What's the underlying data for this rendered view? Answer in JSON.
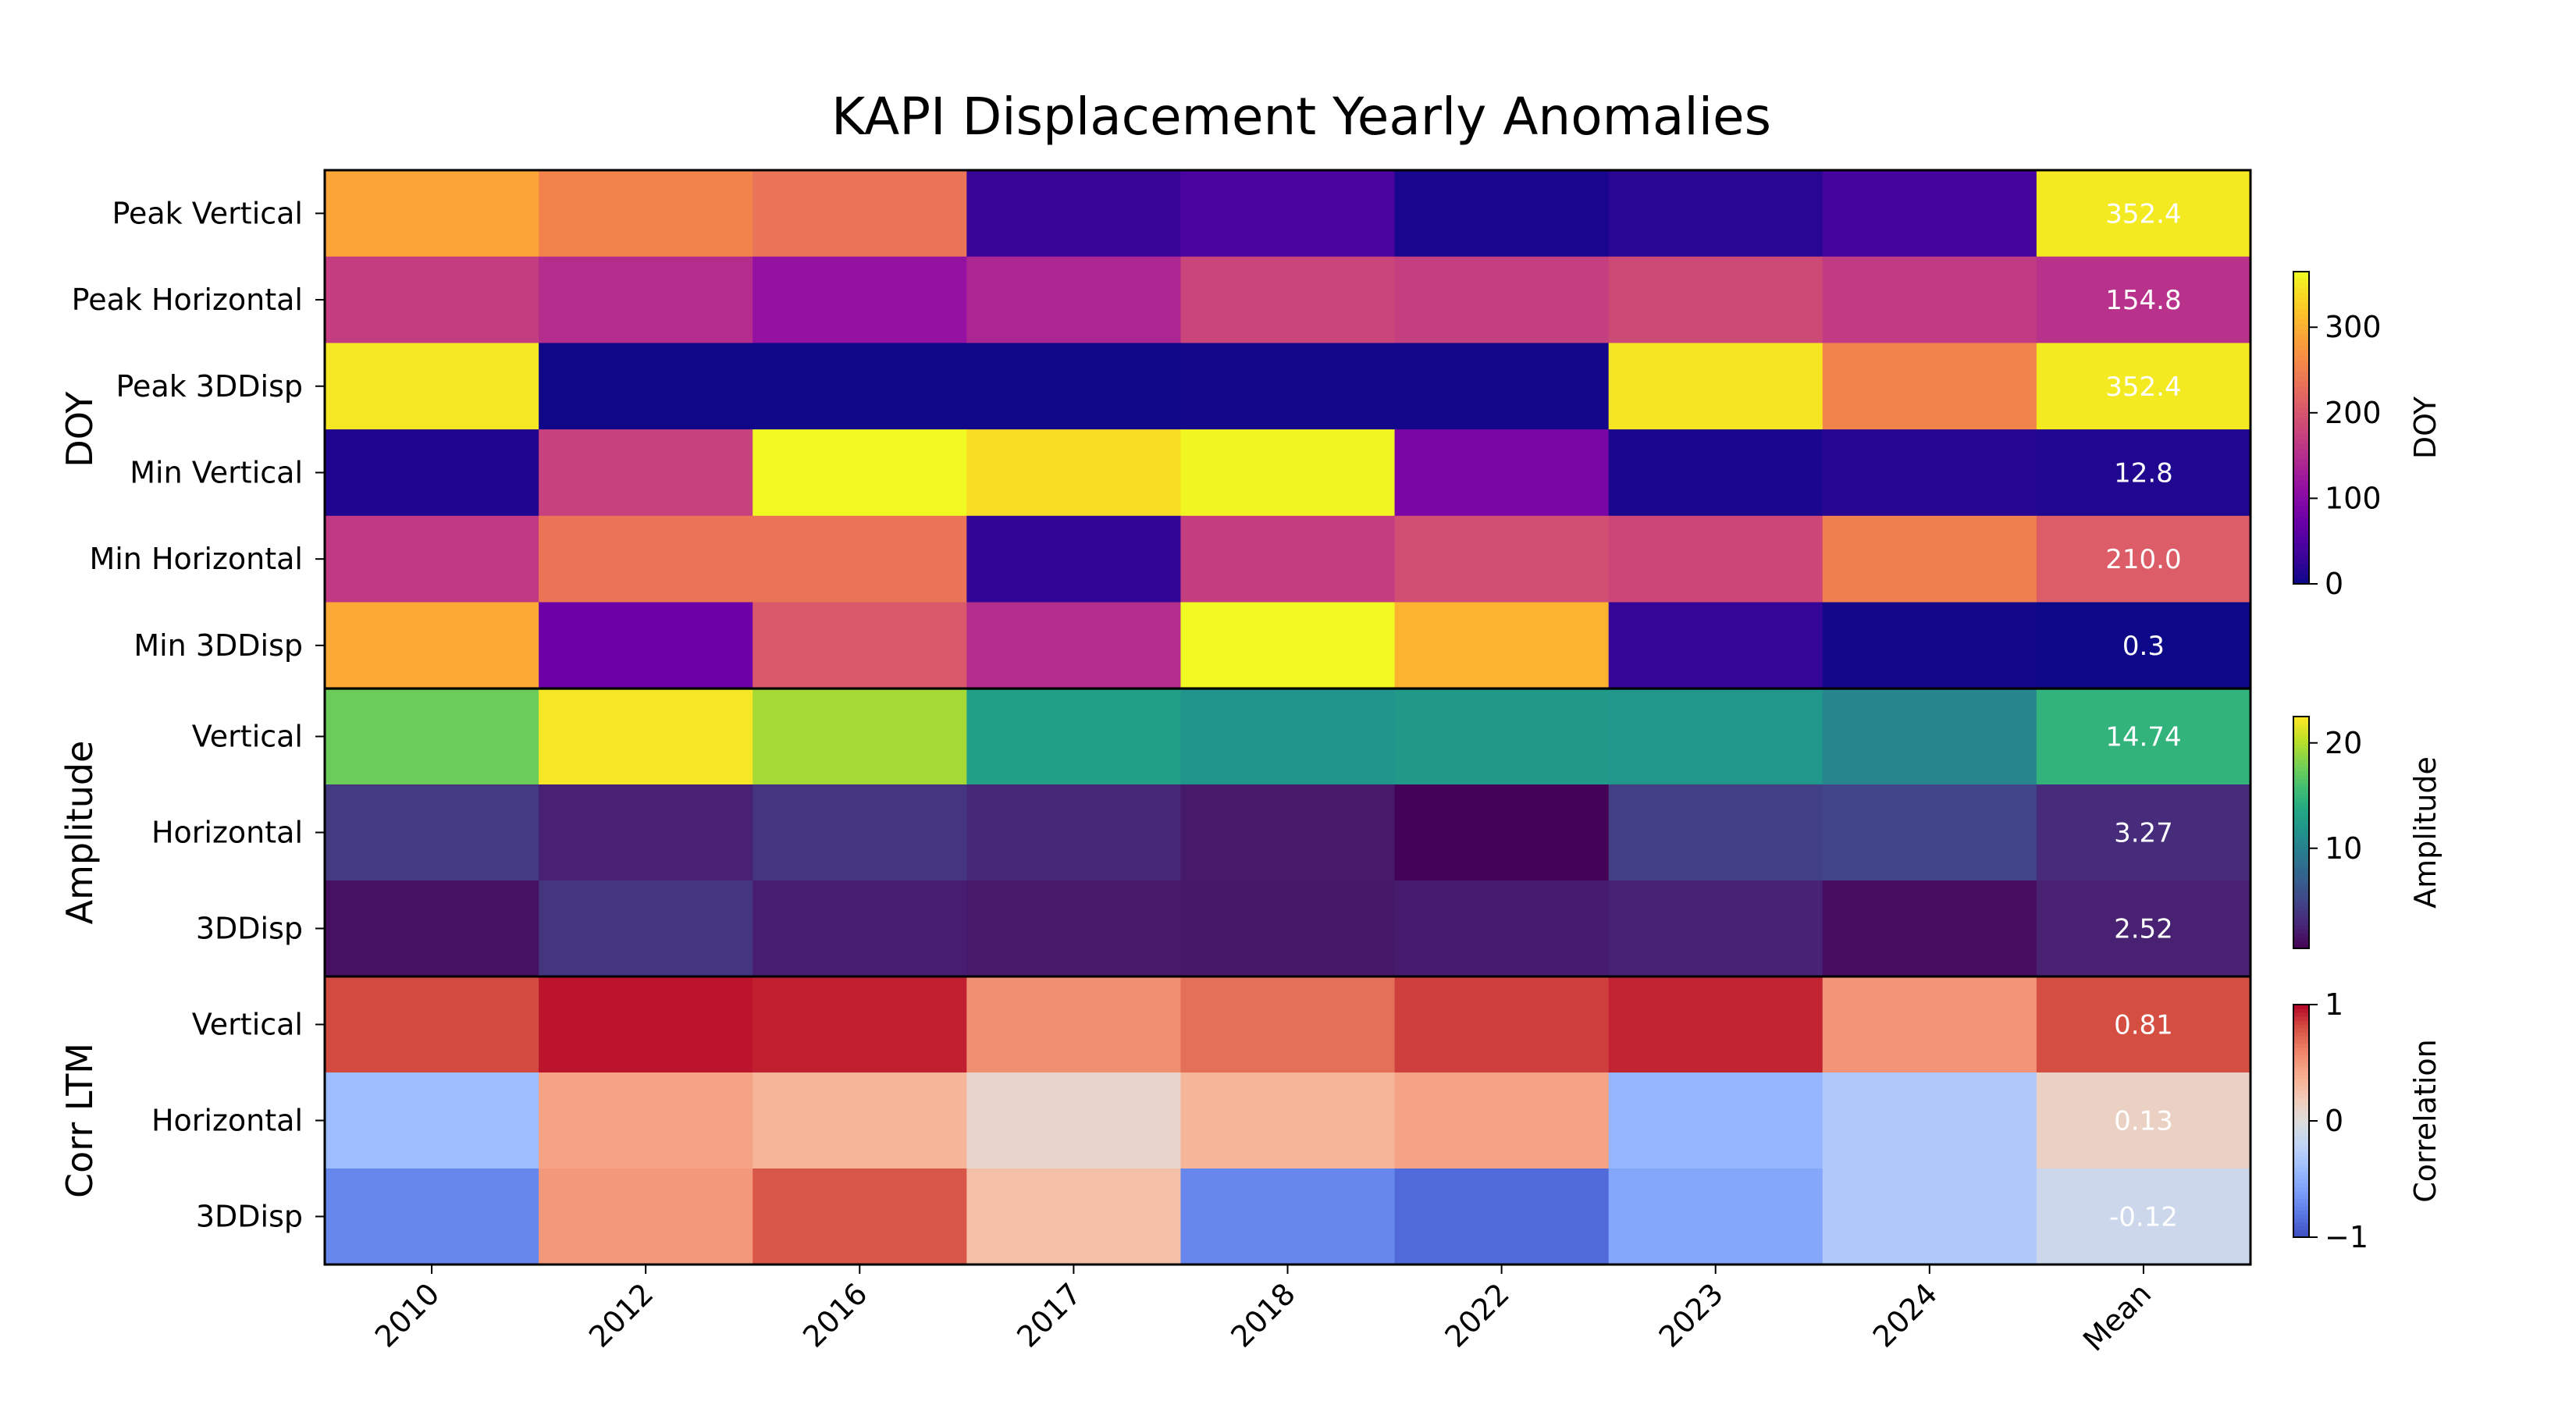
{
  "chart_data": {
    "type": "heatmap",
    "title": "KAPI Displacement Yearly Anomalies",
    "columns": [
      "2010",
      "2012",
      "2016",
      "2017",
      "2018",
      "2022",
      "2023",
      "2024",
      "Mean"
    ],
    "grid": false,
    "blocks": [
      {
        "group_label": "DOY",
        "colormap": "plasma",
        "colorbar": {
          "label": "DOY",
          "range": [
            0,
            365
          ],
          "ticks": [
            "0",
            "100",
            "200",
            "300"
          ],
          "tick_values": [
            0,
            100,
            200,
            300
          ]
        },
        "rows": [
          {
            "label": "Peak Vertical",
            "values": [
              290,
              255,
              237,
              30,
              45,
              8,
              20,
              40
            ],
            "mean": 352.4,
            "mean_text": "352.4"
          },
          {
            "label": "Peak Horizontal",
            "values": [
              170,
              150,
              115,
              140,
              180,
              172,
              186,
              168
            ],
            "mean": 154.8,
            "mean_text": "154.8"
          },
          {
            "label": "Peak 3DDisp",
            "values": [
              350,
              2,
              2,
              3,
              4,
              5,
              348,
              255
            ],
            "mean": 352.4,
            "mean_text": "352.4"
          },
          {
            "label": "Min Vertical",
            "values": [
              12,
              175,
              365,
              340,
              362,
              90,
              10,
              18
            ],
            "mean": 12.8,
            "mean_text": "12.8"
          },
          {
            "label": "Min Horizontal",
            "values": [
              165,
              238,
              238,
              25,
              170,
              192,
              182,
              250
            ],
            "mean": 210.0,
            "mean_text": "210.0"
          },
          {
            "label": "Min 3DDisp",
            "values": [
              295,
              75,
              205,
              150,
              365,
              305,
              28,
              4
            ],
            "mean": 0.3,
            "mean_text": "0.3"
          }
        ]
      },
      {
        "group_label": "Amplitude",
        "colormap": "viridis",
        "colorbar": {
          "label": "Amplitude",
          "range": [
            0.5,
            22.5
          ],
          "ticks": [
            "10",
            "20"
          ],
          "tick_values": [
            10,
            20
          ]
        },
        "rows": [
          {
            "label": "Vertical",
            "values": [
              17.5,
              22.3,
              19.5,
              12.8,
              11.8,
              12.3,
              12.0,
              10.4
            ],
            "mean": 14.74,
            "mean_text": "14.74"
          },
          {
            "label": "Horizontal",
            "values": [
              4.2,
              2.5,
              3.8,
              2.9,
              2.0,
              0.6,
              4.6,
              5.1
            ],
            "mean": 3.27,
            "mean_text": "3.27"
          },
          {
            "label": "3DDisp",
            "values": [
              1.5,
              3.9,
              2.3,
              2.0,
              1.9,
              2.2,
              2.6,
              1.2
            ],
            "mean": 2.52,
            "mean_text": "2.52"
          }
        ]
      },
      {
        "group_label": "Corr LTM",
        "colormap": "coolwarm",
        "colorbar": {
          "label": "Correlation",
          "range": [
            -1,
            1
          ],
          "ticks": [
            "1",
            "0",
            "−1"
          ],
          "tick_values": [
            1,
            0,
            -1
          ]
        },
        "rows": [
          {
            "label": "Vertical",
            "values": [
              0.82,
              0.96,
              0.93,
              0.55,
              0.68,
              0.85,
              0.92,
              0.52
            ],
            "mean": 0.81,
            "mean_text": "0.81"
          },
          {
            "label": "Horizontal",
            "values": [
              -0.4,
              0.45,
              0.35,
              0.1,
              0.35,
              0.45,
              -0.45,
              -0.3
            ],
            "mean": 0.13,
            "mean_text": "0.13"
          },
          {
            "label": "3DDisp",
            "values": [
              -0.72,
              0.5,
              0.78,
              0.28,
              -0.72,
              -0.86,
              -0.55,
              -0.3
            ],
            "mean": -0.12,
            "mean_text": "-0.12"
          }
        ]
      }
    ]
  }
}
